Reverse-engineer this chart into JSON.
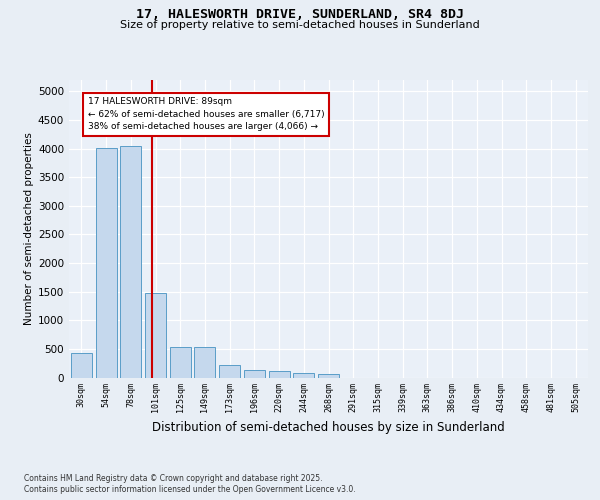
{
  "title1": "17, HALESWORTH DRIVE, SUNDERLAND, SR4 8DJ",
  "title2": "Size of property relative to semi-detached houses in Sunderland",
  "xlabel": "Distribution of semi-detached houses by size in Sunderland",
  "ylabel": "Number of semi-detached properties",
  "property_label": "17 HALESWORTH DRIVE: 89sqm",
  "pct_smaller": 62,
  "pct_larger": 38,
  "count_smaller": 6717,
  "count_larger": 4066,
  "bar_color": "#c5d8ed",
  "bar_edge_color": "#5a9dc8",
  "vline_color": "#cc0000",
  "annotation_box_edge": "#cc0000",
  "annotation_bg": "#ffffff",
  "categories": [
    "30sqm",
    "54sqm",
    "78sqm",
    "101sqm",
    "125sqm",
    "149sqm",
    "173sqm",
    "196sqm",
    "220sqm",
    "244sqm",
    "268sqm",
    "291sqm",
    "315sqm",
    "339sqm",
    "363sqm",
    "386sqm",
    "410sqm",
    "434sqm",
    "458sqm",
    "481sqm",
    "505sqm"
  ],
  "bar_heights": [
    430,
    4020,
    4050,
    1480,
    530,
    530,
    210,
    130,
    120,
    85,
    65,
    0,
    0,
    0,
    0,
    0,
    0,
    0,
    0,
    0,
    0
  ],
  "ylim": [
    0,
    5200
  ],
  "yticks": [
    0,
    500,
    1000,
    1500,
    2000,
    2500,
    3000,
    3500,
    4000,
    4500,
    5000
  ],
  "vline_x": 2.85,
  "footnote1": "Contains HM Land Registry data © Crown copyright and database right 2025.",
  "footnote2": "Contains public sector information licensed under the Open Government Licence v3.0.",
  "bg_color": "#e8eef5",
  "plot_bg_color": "#eaf0f8"
}
